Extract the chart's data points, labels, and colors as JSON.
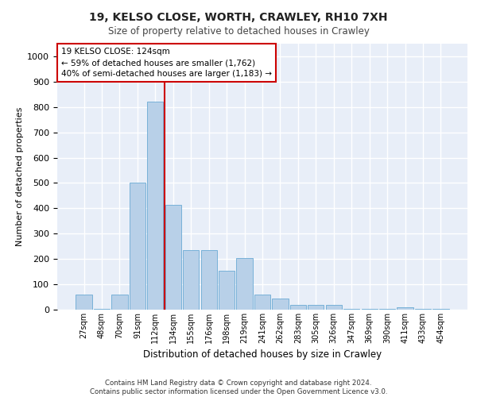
{
  "title1": "19, KELSO CLOSE, WORTH, CRAWLEY, RH10 7XH",
  "title2": "Size of property relative to detached houses in Crawley",
  "xlabel": "Distribution of detached houses by size in Crawley",
  "ylabel": "Number of detached properties",
  "bar_labels": [
    "27sqm",
    "48sqm",
    "70sqm",
    "91sqm",
    "112sqm",
    "134sqm",
    "155sqm",
    "176sqm",
    "198sqm",
    "219sqm",
    "241sqm",
    "262sqm",
    "283sqm",
    "305sqm",
    "326sqm",
    "347sqm",
    "369sqm",
    "390sqm",
    "411sqm",
    "433sqm",
    "454sqm"
  ],
  "bar_values": [
    58,
    2,
    60,
    500,
    820,
    415,
    235,
    235,
    155,
    205,
    60,
    45,
    20,
    20,
    20,
    2,
    2,
    2,
    10,
    2,
    2
  ],
  "bar_color": "#b8d0e8",
  "bar_edge_color": "#6aaad4",
  "background_color": "#e8eef8",
  "grid_color": "#ffffff",
  "vline_color": "#cc0000",
  "vline_pos": 4.5,
  "annotation_text": "19 KELSO CLOSE: 124sqm\n← 59% of detached houses are smaller (1,762)\n40% of semi-detached houses are larger (1,183) →",
  "annotation_box_color": "#ffffff",
  "annotation_box_edge": "#cc0000",
  "footer_text": "Contains HM Land Registry data © Crown copyright and database right 2024.\nContains public sector information licensed under the Open Government Licence v3.0.",
  "ylim": [
    0,
    1050
  ],
  "yticks": [
    0,
    100,
    200,
    300,
    400,
    500,
    600,
    700,
    800,
    900,
    1000
  ]
}
